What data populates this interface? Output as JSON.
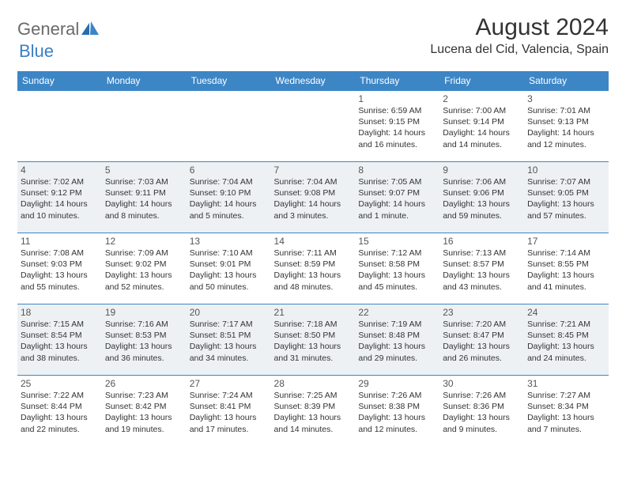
{
  "brand": {
    "part1": "General",
    "part2": "Blue"
  },
  "title": "August 2024",
  "location": "Lucena del Cid, Valencia, Spain",
  "colors": {
    "header_bg": "#3d86c6",
    "header_text": "#ffffff",
    "alt_row_bg": "#eef1f4",
    "border": "#3d86c6",
    "logo_gray": "#6a6a6a",
    "logo_blue": "#3b7fc4"
  },
  "day_headers": [
    "Sunday",
    "Monday",
    "Tuesday",
    "Wednesday",
    "Thursday",
    "Friday",
    "Saturday"
  ],
  "weeks": [
    {
      "alt": false,
      "days": [
        null,
        null,
        null,
        null,
        {
          "n": "1",
          "sr": "Sunrise: 6:59 AM",
          "ss": "Sunset: 9:15 PM",
          "d1": "Daylight: 14 hours",
          "d2": "and 16 minutes."
        },
        {
          "n": "2",
          "sr": "Sunrise: 7:00 AM",
          "ss": "Sunset: 9:14 PM",
          "d1": "Daylight: 14 hours",
          "d2": "and 14 minutes."
        },
        {
          "n": "3",
          "sr": "Sunrise: 7:01 AM",
          "ss": "Sunset: 9:13 PM",
          "d1": "Daylight: 14 hours",
          "d2": "and 12 minutes."
        }
      ]
    },
    {
      "alt": true,
      "days": [
        {
          "n": "4",
          "sr": "Sunrise: 7:02 AM",
          "ss": "Sunset: 9:12 PM",
          "d1": "Daylight: 14 hours",
          "d2": "and 10 minutes."
        },
        {
          "n": "5",
          "sr": "Sunrise: 7:03 AM",
          "ss": "Sunset: 9:11 PM",
          "d1": "Daylight: 14 hours",
          "d2": "and 8 minutes."
        },
        {
          "n": "6",
          "sr": "Sunrise: 7:04 AM",
          "ss": "Sunset: 9:10 PM",
          "d1": "Daylight: 14 hours",
          "d2": "and 5 minutes."
        },
        {
          "n": "7",
          "sr": "Sunrise: 7:04 AM",
          "ss": "Sunset: 9:08 PM",
          "d1": "Daylight: 14 hours",
          "d2": "and 3 minutes."
        },
        {
          "n": "8",
          "sr": "Sunrise: 7:05 AM",
          "ss": "Sunset: 9:07 PM",
          "d1": "Daylight: 14 hours",
          "d2": "and 1 minute."
        },
        {
          "n": "9",
          "sr": "Sunrise: 7:06 AM",
          "ss": "Sunset: 9:06 PM",
          "d1": "Daylight: 13 hours",
          "d2": "and 59 minutes."
        },
        {
          "n": "10",
          "sr": "Sunrise: 7:07 AM",
          "ss": "Sunset: 9:05 PM",
          "d1": "Daylight: 13 hours",
          "d2": "and 57 minutes."
        }
      ]
    },
    {
      "alt": false,
      "days": [
        {
          "n": "11",
          "sr": "Sunrise: 7:08 AM",
          "ss": "Sunset: 9:03 PM",
          "d1": "Daylight: 13 hours",
          "d2": "and 55 minutes."
        },
        {
          "n": "12",
          "sr": "Sunrise: 7:09 AM",
          "ss": "Sunset: 9:02 PM",
          "d1": "Daylight: 13 hours",
          "d2": "and 52 minutes."
        },
        {
          "n": "13",
          "sr": "Sunrise: 7:10 AM",
          "ss": "Sunset: 9:01 PM",
          "d1": "Daylight: 13 hours",
          "d2": "and 50 minutes."
        },
        {
          "n": "14",
          "sr": "Sunrise: 7:11 AM",
          "ss": "Sunset: 8:59 PM",
          "d1": "Daylight: 13 hours",
          "d2": "and 48 minutes."
        },
        {
          "n": "15",
          "sr": "Sunrise: 7:12 AM",
          "ss": "Sunset: 8:58 PM",
          "d1": "Daylight: 13 hours",
          "d2": "and 45 minutes."
        },
        {
          "n": "16",
          "sr": "Sunrise: 7:13 AM",
          "ss": "Sunset: 8:57 PM",
          "d1": "Daylight: 13 hours",
          "d2": "and 43 minutes."
        },
        {
          "n": "17",
          "sr": "Sunrise: 7:14 AM",
          "ss": "Sunset: 8:55 PM",
          "d1": "Daylight: 13 hours",
          "d2": "and 41 minutes."
        }
      ]
    },
    {
      "alt": true,
      "days": [
        {
          "n": "18",
          "sr": "Sunrise: 7:15 AM",
          "ss": "Sunset: 8:54 PM",
          "d1": "Daylight: 13 hours",
          "d2": "and 38 minutes."
        },
        {
          "n": "19",
          "sr": "Sunrise: 7:16 AM",
          "ss": "Sunset: 8:53 PM",
          "d1": "Daylight: 13 hours",
          "d2": "and 36 minutes."
        },
        {
          "n": "20",
          "sr": "Sunrise: 7:17 AM",
          "ss": "Sunset: 8:51 PM",
          "d1": "Daylight: 13 hours",
          "d2": "and 34 minutes."
        },
        {
          "n": "21",
          "sr": "Sunrise: 7:18 AM",
          "ss": "Sunset: 8:50 PM",
          "d1": "Daylight: 13 hours",
          "d2": "and 31 minutes."
        },
        {
          "n": "22",
          "sr": "Sunrise: 7:19 AM",
          "ss": "Sunset: 8:48 PM",
          "d1": "Daylight: 13 hours",
          "d2": "and 29 minutes."
        },
        {
          "n": "23",
          "sr": "Sunrise: 7:20 AM",
          "ss": "Sunset: 8:47 PM",
          "d1": "Daylight: 13 hours",
          "d2": "and 26 minutes."
        },
        {
          "n": "24",
          "sr": "Sunrise: 7:21 AM",
          "ss": "Sunset: 8:45 PM",
          "d1": "Daylight: 13 hours",
          "d2": "and 24 minutes."
        }
      ]
    },
    {
      "alt": false,
      "days": [
        {
          "n": "25",
          "sr": "Sunrise: 7:22 AM",
          "ss": "Sunset: 8:44 PM",
          "d1": "Daylight: 13 hours",
          "d2": "and 22 minutes."
        },
        {
          "n": "26",
          "sr": "Sunrise: 7:23 AM",
          "ss": "Sunset: 8:42 PM",
          "d1": "Daylight: 13 hours",
          "d2": "and 19 minutes."
        },
        {
          "n": "27",
          "sr": "Sunrise: 7:24 AM",
          "ss": "Sunset: 8:41 PM",
          "d1": "Daylight: 13 hours",
          "d2": "and 17 minutes."
        },
        {
          "n": "28",
          "sr": "Sunrise: 7:25 AM",
          "ss": "Sunset: 8:39 PM",
          "d1": "Daylight: 13 hours",
          "d2": "and 14 minutes."
        },
        {
          "n": "29",
          "sr": "Sunrise: 7:26 AM",
          "ss": "Sunset: 8:38 PM",
          "d1": "Daylight: 13 hours",
          "d2": "and 12 minutes."
        },
        {
          "n": "30",
          "sr": "Sunrise: 7:26 AM",
          "ss": "Sunset: 8:36 PM",
          "d1": "Daylight: 13 hours",
          "d2": "and 9 minutes."
        },
        {
          "n": "31",
          "sr": "Sunrise: 7:27 AM",
          "ss": "Sunset: 8:34 PM",
          "d1": "Daylight: 13 hours",
          "d2": "and 7 minutes."
        }
      ]
    }
  ]
}
